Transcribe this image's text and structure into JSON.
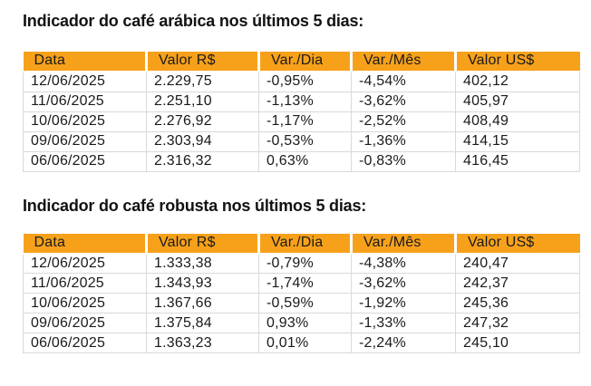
{
  "colors": {
    "header_bg": "#F7A11B",
    "header_text": "#1A1A1A",
    "cell_text": "#1A1A1A",
    "grid": "#D9D9D9",
    "title_text": "#121212",
    "page_bg": "#FFFFFF"
  },
  "sections": [
    {
      "id": "arabica",
      "title": "Indicador do café arábica nos últimos 5 dias:",
      "table": {
        "headers": [
          "Data",
          "Valor R$",
          "Var./Dia",
          "Var./Mês",
          "Valor US$"
        ],
        "col_ids": [
          "data",
          "valor-rs",
          "var-dia",
          "var-mes",
          "valor-usd"
        ],
        "rows": [
          [
            "12/06/2025",
            "2.229,75",
            "-0,95%",
            "-4,54%",
            "402,12"
          ],
          [
            "11/06/2025",
            "2.251,10",
            "-1,13%",
            "-3,62%",
            "405,97"
          ],
          [
            "10/06/2025",
            "2.276,92",
            "-1,17%",
            "-2,52%",
            "408,49"
          ],
          [
            "09/06/2025",
            "2.303,94",
            "-0,53%",
            "-1,36%",
            "414,15"
          ],
          [
            "06/06/2025",
            "2.316,32",
            "0,63%",
            "-0,83%",
            "416,45"
          ]
        ]
      }
    },
    {
      "id": "robusta",
      "title": "Indicador do café robusta nos últimos 5 dias:",
      "table": {
        "headers": [
          "Data",
          "Valor R$",
          "Var./Dia",
          "Var./Mês",
          "Valor US$"
        ],
        "col_ids": [
          "data",
          "valor-rs",
          "var-dia",
          "var-mes",
          "valor-usd"
        ],
        "rows": [
          [
            "12/06/2025",
            "1.333,38",
            "-0,79%",
            "-4,38%",
            "240,47"
          ],
          [
            "11/06/2025",
            "1.343,93",
            "-1,74%",
            "-3,62%",
            "242,37"
          ],
          [
            "10/06/2025",
            "1.367,66",
            "-0,59%",
            "-1,92%",
            "245,36"
          ],
          [
            "09/06/2025",
            "1.375,84",
            "0,93%",
            "-1,33%",
            "247,32"
          ],
          [
            "06/06/2025",
            "1.363,23",
            "0,01%",
            "-2,24%",
            "245,10"
          ]
        ]
      }
    }
  ]
}
